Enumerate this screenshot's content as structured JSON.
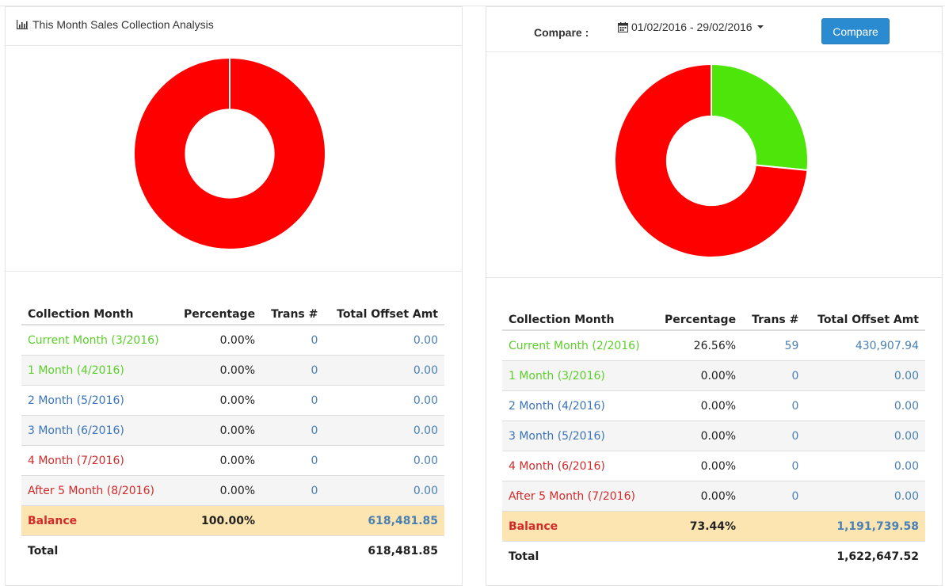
{
  "left": {
    "title": "This Month Sales Collection Analysis",
    "title_icon": "bar-chart-icon",
    "chart_data": {
      "type": "pie",
      "categories": [
        "Current Month (3/2016)",
        "Balance"
      ],
      "values": [
        0.0,
        100.0
      ],
      "colors": [
        "#4ee60a",
        "#ff0000"
      ]
    },
    "table": {
      "headers": [
        "Collection Month",
        "Percentage",
        "Trans #",
        "Total Offset Amt"
      ],
      "rows": [
        {
          "month": "Current Month (3/2016)",
          "pct": "0.00%",
          "trans": "0",
          "amt": "0.00",
          "month_color": "green"
        },
        {
          "month": "1 Month (4/2016)",
          "pct": "0.00%",
          "trans": "0",
          "amt": "0.00",
          "month_color": "green"
        },
        {
          "month": "2 Month (5/2016)",
          "pct": "0.00%",
          "trans": "0",
          "amt": "0.00",
          "month_color": "blue"
        },
        {
          "month": "3 Month (6/2016)",
          "pct": "0.00%",
          "trans": "0",
          "amt": "0.00",
          "month_color": "blue"
        },
        {
          "month": "4 Month (7/2016)",
          "pct": "0.00%",
          "trans": "0",
          "amt": "0.00",
          "month_color": "red"
        },
        {
          "month": "After 5 Month (8/2016)",
          "pct": "0.00%",
          "trans": "0",
          "amt": "0.00",
          "month_color": "red"
        }
      ],
      "balance": {
        "label": "Balance",
        "pct": "100.00%",
        "amt": "618,481.85"
      },
      "total": {
        "label": "Total",
        "amt": "618,481.85"
      }
    }
  },
  "right": {
    "compare_label": "Compare :",
    "date_range": "01/02/2016 - 29/02/2016",
    "compare_button": "Compare",
    "chart_data": {
      "type": "pie",
      "categories": [
        "Current Month (2/2016)",
        "Balance"
      ],
      "values": [
        26.56,
        73.44
      ],
      "colors": [
        "#4ee60a",
        "#ff0000"
      ]
    },
    "table": {
      "headers": [
        "Collection Month",
        "Percentage",
        "Trans #",
        "Total Offset Amt"
      ],
      "rows": [
        {
          "month": "Current Month (2/2016)",
          "pct": "26.56%",
          "trans": "59",
          "amt": "430,907.94",
          "month_color": "green"
        },
        {
          "month": "1 Month (3/2016)",
          "pct": "0.00%",
          "trans": "0",
          "amt": "0.00",
          "month_color": "green"
        },
        {
          "month": "2 Month (4/2016)",
          "pct": "0.00%",
          "trans": "0",
          "amt": "0.00",
          "month_color": "blue"
        },
        {
          "month": "3 Month (5/2016)",
          "pct": "0.00%",
          "trans": "0",
          "amt": "0.00",
          "month_color": "blue"
        },
        {
          "month": "4 Month (6/2016)",
          "pct": "0.00%",
          "trans": "0",
          "amt": "0.00",
          "month_color": "red"
        },
        {
          "month": "After 5 Month (7/2016)",
          "pct": "0.00%",
          "trans": "0",
          "amt": "0.00",
          "month_color": "red"
        }
      ],
      "balance": {
        "label": "Balance",
        "pct": "73.44%",
        "amt": "1,191,739.58"
      },
      "total": {
        "label": "Total",
        "amt": "1,622,647.52"
      }
    }
  }
}
